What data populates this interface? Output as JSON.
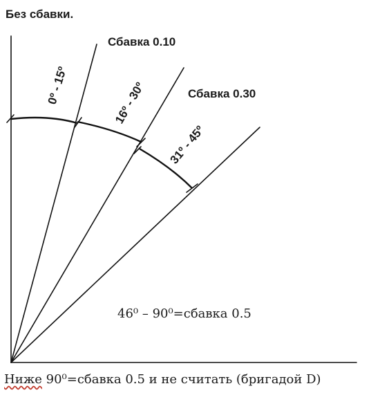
{
  "labels": {
    "no_allowance": "Без сбавки.",
    "allowance_010": "Сбавка 0.10",
    "allowance_030": "Сбавка 0.30",
    "range_0_15": "0º - 15º",
    "range_16_30": "16º - 30º",
    "range_31_45": "31º - 45º",
    "range_46_90": "46⁰ – 90⁰=сбавка 0.5"
  },
  "caption": {
    "underlined_word": "Ниже",
    "rest": " 90⁰=сбавка 0.5 и не считать (бригадой D)"
  }
}
